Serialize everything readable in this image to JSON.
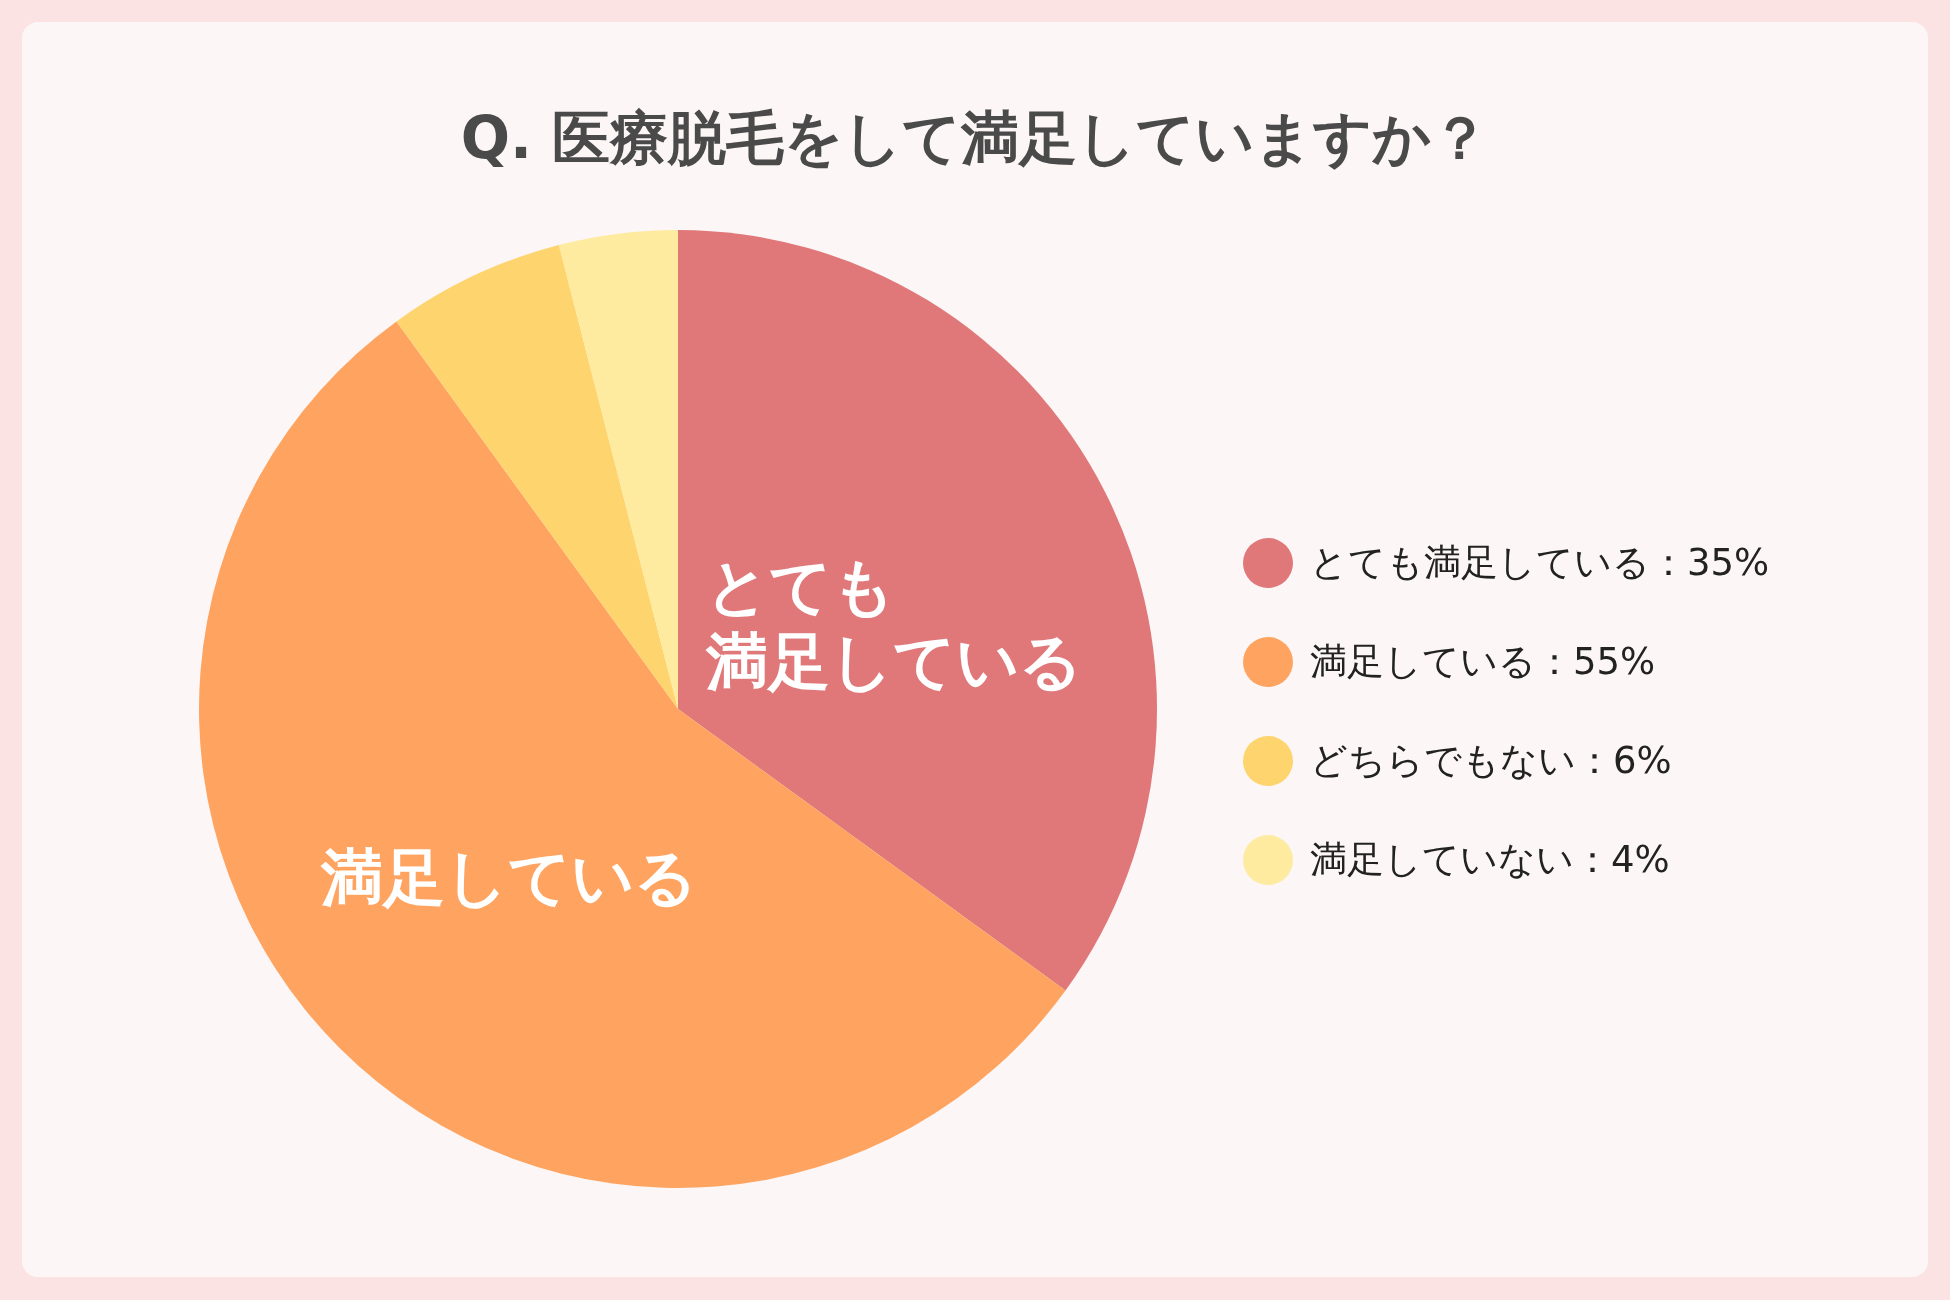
{
  "chart_data": {
    "type": "pie",
    "title": "Q. 医療脱毛をして満足していますか？",
    "categories": [
      "とても満足している：35%",
      "満足している：55%",
      "どちらでもない：6%",
      "満足していない：4%"
    ],
    "values": [
      35,
      55,
      6,
      4
    ],
    "colors": [
      "#e07779",
      "#fea460",
      "#fed46e",
      "#feeb9f"
    ],
    "annotations": [
      "とても満足している",
      "満足している"
    ],
    "legend": "right"
  }
}
